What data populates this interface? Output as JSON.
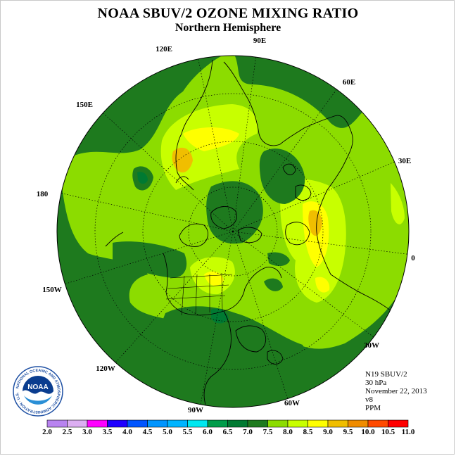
{
  "title": "NOAA SBUV/2 OZONE MIXING RATIO",
  "subtitle": "Northern Hemisphere",
  "longitude_labels": [
    "120E",
    "90E",
    "60E",
    "150E",
    "30E",
    "180",
    "0",
    "150W",
    "30W",
    "120W",
    "60W",
    "90W"
  ],
  "info": {
    "satellite": "N19 SBUV/2",
    "level": "30 hPa",
    "date": "November 22, 2013",
    "version": "v8",
    "units": "PPM"
  },
  "logo": {
    "text": "NOAA",
    "ring_text": "NATIONAL OCEANIC AND ATMOSPHERIC ADMINISTRATION · U.S. DEPARTMENT OF COMMERCE"
  },
  "colorbar": {
    "labels": [
      "2.0",
      "2.5",
      "3.0",
      "3.5",
      "4.0",
      "4.5",
      "5.0",
      "5.5",
      "6.0",
      "6.5",
      "7.0",
      "7.5",
      "8.0",
      "8.5",
      "9.0",
      "9.5",
      "10.0",
      "10.5",
      "11.0"
    ],
    "colors": [
      "#b883f0",
      "#dcaef2",
      "#ff00ff",
      "#2000ff",
      "#0055ff",
      "#0095ff",
      "#00b4ff",
      "#00e8f0",
      "#009c4a",
      "#007a32",
      "#1e7a1e",
      "#8cdc00",
      "#c8ff00",
      "#ffff00",
      "#f0be00",
      "#f08c00",
      "#ff4a00",
      "#ff0000",
      "#8c5a3c"
    ]
  },
  "colors": {
    "dark_green": "#1e7a1e",
    "mid_green": "#2e8b2e",
    "light_green": "#8cdc00",
    "yellow_green": "#c8ff00",
    "yellow": "#ffff00",
    "orange": "#f0be00"
  }
}
